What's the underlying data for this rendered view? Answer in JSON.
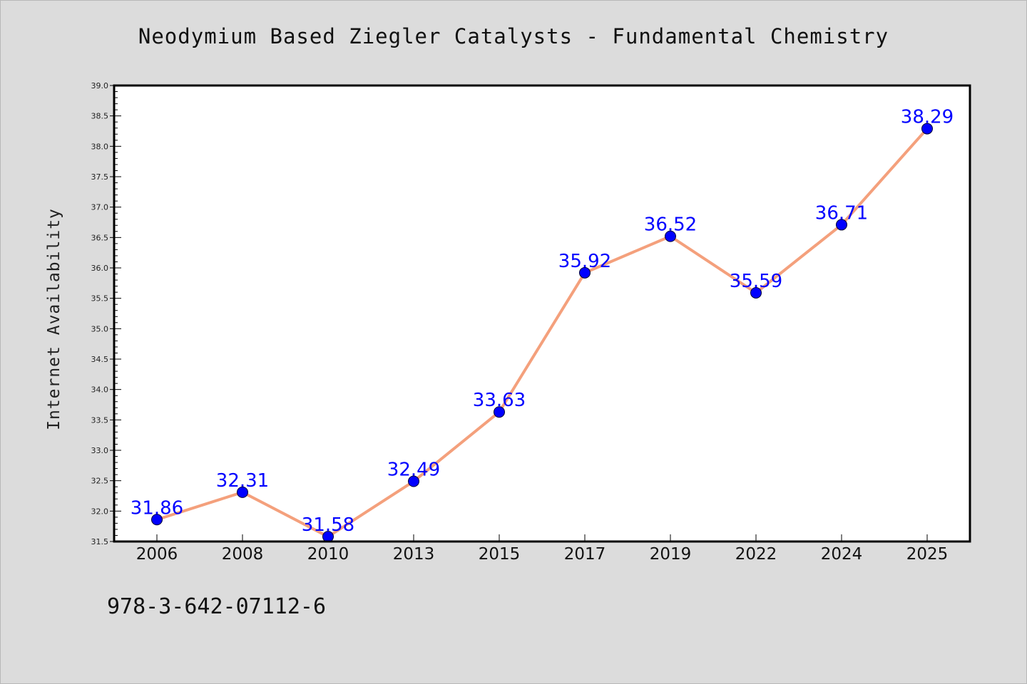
{
  "chart_data": {
    "type": "line",
    "title": "Neodymium Based Ziegler Catalysts - Fundamental Chemistry",
    "xlabel": "",
    "ylabel": "Internet Availability",
    "categories": [
      "2006",
      "2008",
      "2010",
      "2013",
      "2015",
      "2017",
      "2019",
      "2022",
      "2024",
      "2025"
    ],
    "series": [
      {
        "values": [
          31.86,
          32.31,
          31.58,
          32.49,
          33.63,
          35.92,
          36.52,
          35.59,
          36.71,
          38.29
        ],
        "data_labels": [
          "31.86",
          "32.31",
          "31.58",
          "32.49",
          "33.63",
          "35.92",
          "36.52",
          "35.59",
          "36.71",
          "38.29"
        ]
      }
    ],
    "ylim": [
      31.5,
      39.0
    ],
    "yticks": [
      "31.5",
      "32.0",
      "32.5",
      "33.0",
      "33.5",
      "34.0",
      "34.5",
      "35.0",
      "35.5",
      "36.0",
      "36.5",
      "37.0",
      "37.5",
      "38.0",
      "38.5",
      "39.0"
    ],
    "grid": false,
    "legend": "none",
    "colors": {
      "line": "#f4a07c",
      "marker": "#0000ff",
      "labels": "#0000ff",
      "plot_background": "#ffffff",
      "page_background": "#dcdcdc"
    }
  },
  "footer": {
    "identifier": "978-3-642-07112-6"
  }
}
